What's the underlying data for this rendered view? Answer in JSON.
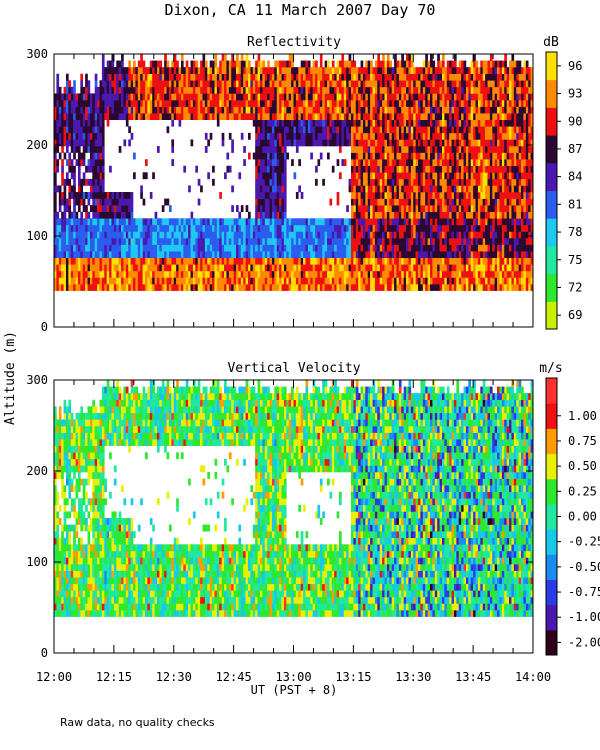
{
  "title": "Dixon, CA 11 March 2007  Day  70",
  "y_axis_label": "Altitude (m)",
  "x_axis_label": "UT  (PST + 8)",
  "footnote": "Raw data, no quality checks",
  "x_ticks": [
    "12:00",
    "12:15",
    "12:30",
    "12:45",
    "13:00",
    "13:15",
    "13:30",
    "13:45",
    "14:00"
  ],
  "chart_data": [
    {
      "type": "heatmap",
      "title": "Reflectivity",
      "x_range": [
        "12:00",
        "14:00"
      ],
      "ylabel": "Altitude (m)",
      "xlabel": "UT  (PST + 8)",
      "ylim": [
        0,
        300
      ],
      "y_ticks": [
        0,
        100,
        200,
        300
      ],
      "data_floor_m": 40,
      "colorbar": {
        "unit": "dB",
        "levels": [
          69,
          72,
          75,
          78,
          81,
          84,
          87,
          90,
          93,
          96
        ],
        "colors": [
          "#c8f000",
          "#2ee82e",
          "#20e8a0",
          "#1ec8f0",
          "#2a5cf0",
          "#4a18b0",
          "#2a0830",
          "#ee1010",
          "#ff8a00",
          "#ffe000"
        ]
      }
    },
    {
      "type": "heatmap",
      "title": "Vertical Velocity",
      "x_range": [
        "12:00",
        "14:00"
      ],
      "ylabel": "Altitude (m)",
      "xlabel": "UT  (PST + 8)",
      "ylim": [
        0,
        300
      ],
      "y_ticks": [
        0,
        100,
        200,
        300
      ],
      "data_floor_m": 40,
      "colorbar": {
        "unit": "m/s",
        "levels": [
          -2.0,
          -1.0,
          -0.75,
          -0.5,
          -0.25,
          0.0,
          0.25,
          0.5,
          0.75,
          1.0
        ],
        "level_labels": [
          "-2.00",
          "-1.00",
          "-0.75",
          "-0.50",
          "-0.25",
          "0.00",
          "0.25",
          "0.50",
          "0.75",
          "1.00"
        ],
        "colors": [
          "#30001a",
          "#4a18b0",
          "#2a3ce8",
          "#1a8cf0",
          "#18c8e8",
          "#20e8a0",
          "#2ee82e",
          "#e8f000",
          "#ff9a00",
          "#f01010",
          "#ff3030"
        ]
      }
    }
  ]
}
